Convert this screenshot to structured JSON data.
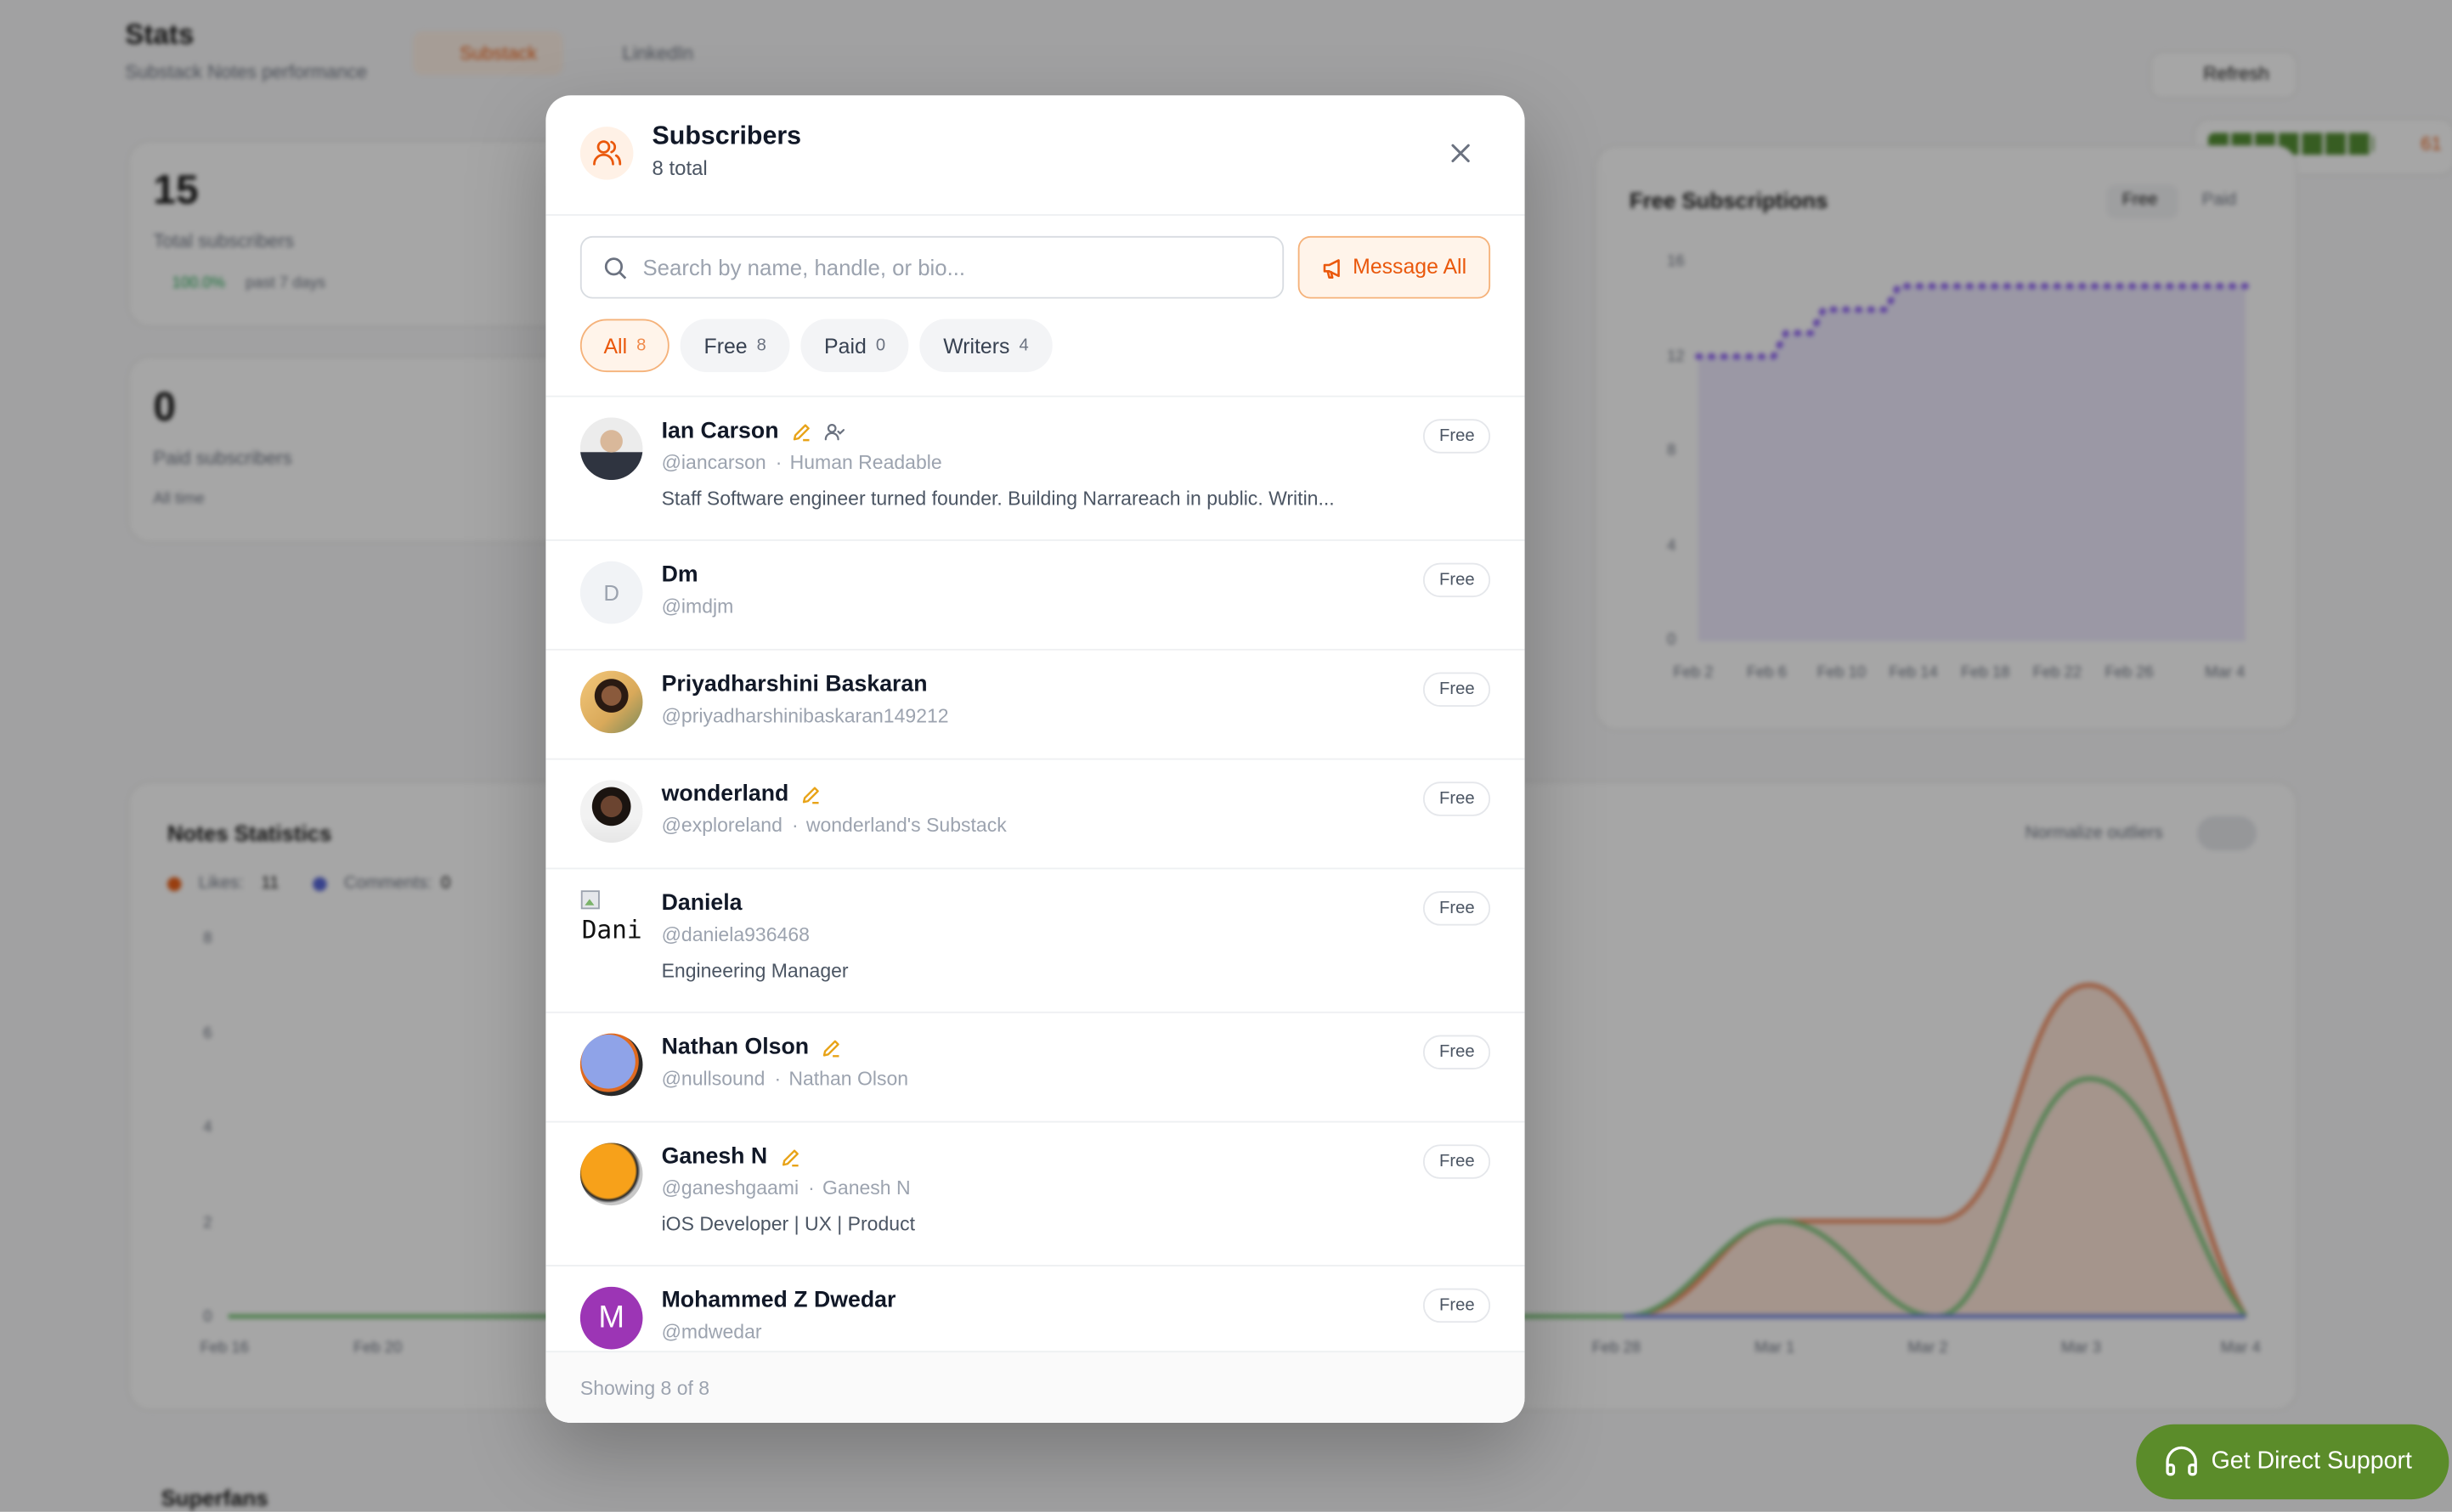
{
  "background": {
    "title": "Stats",
    "subtitle": "Substack Notes performance",
    "tabs": [
      "Substack",
      "LinkedIn"
    ],
    "refresh": "Refresh",
    "streak": "61",
    "stats": [
      {
        "value": "15",
        "label": "Total subscribers",
        "change": "100.0%",
        "period": "past 7 days"
      },
      {
        "value": "0",
        "label": "Paid subscribers",
        "period": "All time"
      }
    ],
    "free_chart": {
      "title": "Free Subscriptions",
      "toggles": [
        "Free",
        "Paid"
      ],
      "yticks": [
        "16",
        "12",
        "8",
        "4",
        "0"
      ],
      "xticks": [
        "Feb 2",
        "Feb 6",
        "Feb 10",
        "Feb 14",
        "Feb 18",
        "Feb 22",
        "Feb 26",
        "Mar 4"
      ]
    },
    "notes_chart": {
      "title": "Notes Statistics",
      "legend": [
        {
          "name": "Likes:",
          "value": "11",
          "color": "#ea580c"
        },
        {
          "name": "Comments:",
          "value": "0",
          "color": "#4f5fd6"
        }
      ],
      "normalize": "Normalize outliers",
      "yticks": [
        "8",
        "6",
        "4",
        "2",
        "0"
      ],
      "xticks": [
        "Feb 16",
        "Feb 20",
        "Feb 28",
        "Mar 1",
        "Mar 2",
        "Mar 3",
        "Mar 4"
      ]
    },
    "superfans": "Superfans",
    "support": "Get Direct Support"
  },
  "modal": {
    "title": "Subscribers",
    "subtitle": "8 total",
    "search_placeholder": "Search by name, handle, or bio...",
    "message_all": "Message All",
    "tabs": [
      {
        "label": "All",
        "count": "8"
      },
      {
        "label": "Free",
        "count": "8"
      },
      {
        "label": "Paid",
        "count": "0"
      },
      {
        "label": "Writers",
        "count": "4"
      }
    ],
    "subscribers": [
      {
        "name": "Ian Carson",
        "writer": true,
        "follows": true,
        "handle": "@iancarson",
        "publication": "Human Readable",
        "bio": "Staff Software engineer turned founder. Building Narrareach in public. Writin...",
        "badge": "Free"
      },
      {
        "name": "Dm",
        "initial": "D",
        "handle": "@imdjm",
        "badge": "Free"
      },
      {
        "name": "Priyadharshini Baskaran",
        "handle": "@priyadharshinibaskaran149212",
        "badge": "Free"
      },
      {
        "name": "wonderland",
        "writer": true,
        "handle": "@exploreland",
        "publication": "wonderland's Substack",
        "badge": "Free"
      },
      {
        "name": "Daniela",
        "broken_avatar": "Daniela",
        "handle": "@daniela936468",
        "bio": "Engineering Manager",
        "badge": "Free"
      },
      {
        "name": "Nathan Olson",
        "writer": true,
        "handle": "@nullsound",
        "publication": "Nathan Olson",
        "badge": "Free"
      },
      {
        "name": "Ganesh N",
        "writer": true,
        "handle": "@ganeshgaami",
        "publication": "Ganesh N",
        "bio": "iOS Developer | UX | Product",
        "badge": "Free"
      },
      {
        "name": "Mohammed Z Dwedar",
        "initial": "M",
        "handle": "@mdwedar",
        "badge": "Free"
      }
    ],
    "footer": "Showing 8 of 8"
  }
}
